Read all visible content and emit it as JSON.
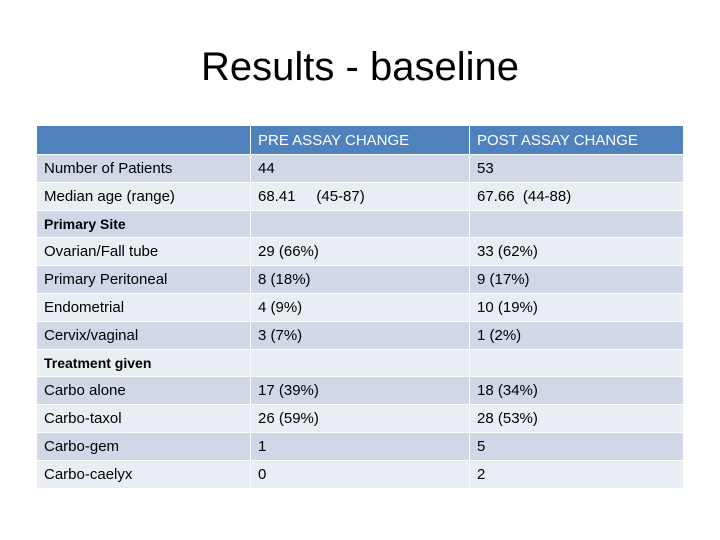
{
  "title": "Results - baseline",
  "table": {
    "columns": [
      "",
      "PRE ASSAY CHANGE",
      "POST ASSAY CHANGE"
    ],
    "rows": [
      {
        "type": "data",
        "label": "Number of Patients",
        "pre": "44",
        "post": "53"
      },
      {
        "type": "data",
        "label": "Median age (range)",
        "pre": "68.41     (45-87)",
        "post": "67.66  (44-88)"
      },
      {
        "type": "section",
        "label": "Primary Site"
      },
      {
        "type": "data",
        "label": "Ovarian/Fall tube",
        "pre": "29 (66%)",
        "post": "33 (62%)"
      },
      {
        "type": "data",
        "label": "Primary Peritoneal",
        "pre": "8 (18%)",
        "post": "9 (17%)"
      },
      {
        "type": "data",
        "label": "Endometrial",
        "pre": "4 (9%)",
        "post": "10 (19%)"
      },
      {
        "type": "data",
        "label": "Cervix/vaginal",
        "pre": "3 (7%)",
        "post": "1 (2%)"
      },
      {
        "type": "section",
        "label": "Treatment given"
      },
      {
        "type": "data",
        "label": "Carbo alone",
        "pre": "17 (39%)",
        "post": "18 (34%)"
      },
      {
        "type": "data",
        "label": "Carbo-taxol",
        "pre": "26 (59%)",
        "post": "28 (53%)"
      },
      {
        "type": "data",
        "label": "Carbo-gem",
        "pre": "1",
        "post": "5"
      },
      {
        "type": "data",
        "label": "Carbo-caelyx",
        "pre": "0",
        "post": "2"
      }
    ]
  },
  "colors": {
    "header": "#4f81bd",
    "band_dark": "#d0d8e8",
    "band_light": "#e9edf4"
  }
}
